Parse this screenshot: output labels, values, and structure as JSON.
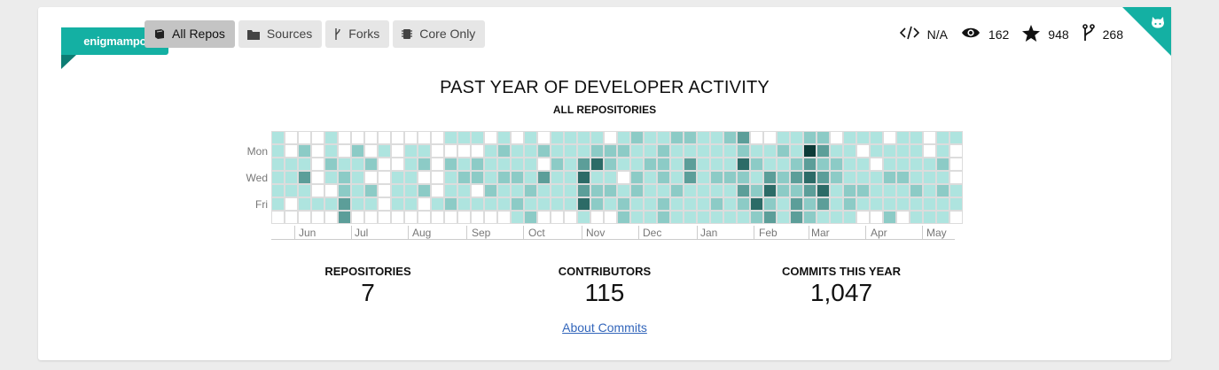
{
  "org": {
    "name": "enigmampc"
  },
  "tabs": [
    {
      "label": "All Repos",
      "icon": "book-icon",
      "active": true
    },
    {
      "label": "Sources",
      "icon": "folder-icon",
      "active": false
    },
    {
      "label": "Forks",
      "icon": "fork-icon",
      "active": false
    },
    {
      "label": "Core Only",
      "icon": "chip-icon",
      "active": false
    }
  ],
  "repo_stats": {
    "language": {
      "icon": "code-icon",
      "value": "N/A"
    },
    "watchers": {
      "icon": "eye-icon",
      "value": "162"
    },
    "stars": {
      "icon": "star-icon",
      "value": "948"
    },
    "forks": {
      "icon": "fork-icon",
      "value": "268"
    }
  },
  "activity": {
    "title": "PAST YEAR OF DEVELOPER ACTIVITY",
    "subtitle": "ALL REPOSITORIES",
    "day_labels": [
      "Mon",
      "Wed",
      "Fri"
    ],
    "months": [
      "Jun",
      "Jul",
      "Aug",
      "Sep",
      "Oct",
      "Nov",
      "Dec",
      "Jan",
      "Feb",
      "Mar",
      "Apr",
      "May"
    ],
    "colors": [
      "#ffffff",
      "#aee4df",
      "#8ccbc6",
      "#5c9e99",
      "#2c6b67",
      "#0d3b38"
    ]
  },
  "chart_data": {
    "type": "heatmap",
    "title": "PAST YEAR OF DEVELOPER ACTIVITY",
    "subtitle": "ALL REPOSITORIES",
    "x_labels": [
      "Jun",
      "Jul",
      "Aug",
      "Sep",
      "Oct",
      "Nov",
      "Dec",
      "Jan",
      "Feb",
      "Mar",
      "Apr",
      "May"
    ],
    "y_labels": [
      "Mon",
      "Wed",
      "Fri"
    ],
    "grid": [
      [
        1,
        0,
        0,
        0,
        1,
        0,
        0,
        0,
        0,
        0,
        0,
        0,
        0,
        1,
        1,
        1,
        0,
        1,
        0,
        1,
        0,
        1,
        1,
        1,
        1,
        0,
        1,
        2,
        1,
        1,
        2,
        2,
        1,
        1,
        2,
        3,
        0,
        0,
        1,
        1,
        2,
        2,
        0,
        1,
        1,
        1,
        0,
        1,
        1,
        0,
        1,
        1
      ],
      [
        1,
        0,
        2,
        0,
        1,
        0,
        2,
        0,
        1,
        0,
        1,
        1,
        0,
        0,
        0,
        0,
        1,
        2,
        1,
        1,
        2,
        1,
        1,
        1,
        2,
        2,
        2,
        1,
        1,
        2,
        1,
        1,
        1,
        1,
        1,
        2,
        1,
        1,
        2,
        1,
        5,
        3,
        1,
        1,
        0,
        1,
        1,
        1,
        1,
        0,
        1,
        0
      ],
      [
        1,
        1,
        1,
        0,
        2,
        1,
        1,
        2,
        0,
        0,
        1,
        2,
        0,
        2,
        1,
        2,
        1,
        1,
        1,
        1,
        0,
        2,
        1,
        3,
        4,
        2,
        1,
        1,
        2,
        2,
        1,
        3,
        1,
        1,
        1,
        4,
        2,
        1,
        1,
        2,
        3,
        2,
        2,
        1,
        1,
        0,
        1,
        1,
        1,
        1,
        2,
        0
      ],
      [
        1,
        1,
        3,
        0,
        1,
        2,
        1,
        0,
        0,
        1,
        1,
        0,
        0,
        1,
        2,
        2,
        1,
        2,
        2,
        1,
        3,
        1,
        1,
        4,
        1,
        1,
        0,
        2,
        1,
        2,
        1,
        3,
        1,
        2,
        2,
        2,
        1,
        3,
        2,
        3,
        4,
        3,
        2,
        1,
        1,
        1,
        2,
        2,
        1,
        1,
        1,
        0
      ],
      [
        1,
        1,
        1,
        0,
        0,
        2,
        1,
        2,
        0,
        1,
        1,
        2,
        0,
        1,
        1,
        0,
        2,
        1,
        1,
        2,
        1,
        1,
        1,
        3,
        2,
        2,
        1,
        2,
        1,
        1,
        2,
        1,
        1,
        1,
        1,
        3,
        2,
        4,
        2,
        2,
        3,
        4,
        1,
        2,
        2,
        1,
        1,
        1,
        2,
        1,
        2,
        1
      ],
      [
        1,
        0,
        1,
        1,
        1,
        3,
        1,
        1,
        0,
        1,
        1,
        0,
        1,
        2,
        1,
        1,
        1,
        1,
        2,
        1,
        1,
        1,
        1,
        4,
        2,
        1,
        2,
        1,
        1,
        2,
        1,
        1,
        1,
        2,
        1,
        2,
        4,
        2,
        1,
        3,
        2,
        3,
        1,
        2,
        1,
        1,
        1,
        1,
        1,
        1,
        1,
        1
      ],
      [
        0,
        0,
        0,
        0,
        0,
        3,
        0,
        0,
        0,
        0,
        0,
        0,
        0,
        0,
        0,
        0,
        0,
        0,
        1,
        2,
        0,
        0,
        0,
        1,
        0,
        0,
        2,
        1,
        1,
        2,
        1,
        1,
        1,
        1,
        1,
        1,
        2,
        3,
        1,
        3,
        2,
        1,
        1,
        1,
        0,
        0,
        2,
        0,
        1,
        1,
        1,
        0
      ]
    ]
  },
  "metrics": [
    {
      "label": "REPOSITORIES",
      "value": "7"
    },
    {
      "label": "CONTRIBUTORS",
      "value": "115"
    },
    {
      "label": "COMMITS THIS YEAR",
      "value": "1,047"
    }
  ],
  "about_link": "About Commits"
}
